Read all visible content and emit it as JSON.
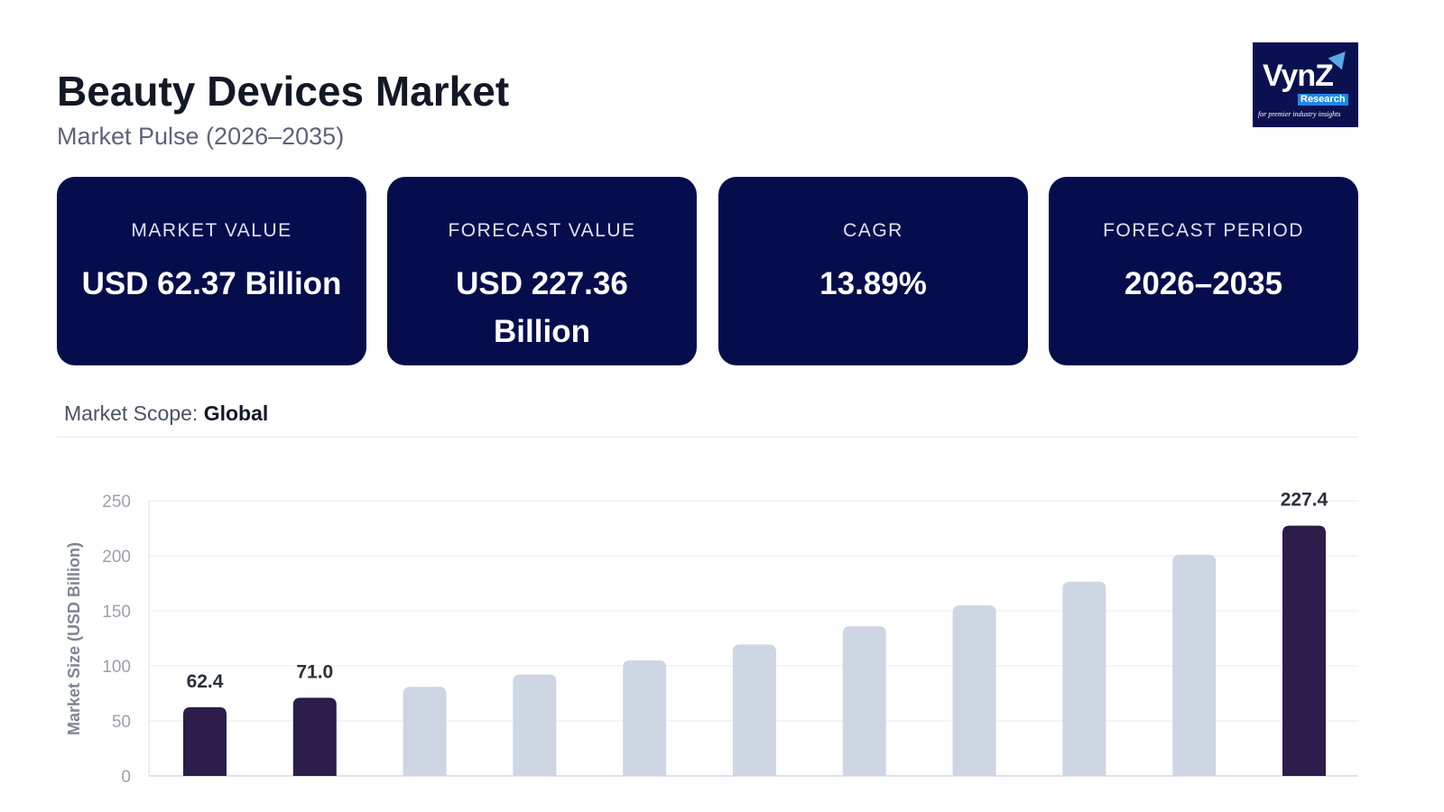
{
  "header": {
    "title": "Beauty Devices Market",
    "subtitle": "Market Pulse (2026–2035)"
  },
  "logo": {
    "text": "VynZ",
    "sub": "Research",
    "tagline": "for premier industry insights"
  },
  "cards": [
    {
      "label": "MARKET VALUE",
      "value": "USD 62.37 Billion"
    },
    {
      "label": "FORECAST VALUE",
      "value": "USD 227.36 Billion"
    },
    {
      "label": "CAGR",
      "value": "13.89%"
    },
    {
      "label": "FORECAST PERIOD",
      "value": "2026–2035"
    }
  ],
  "scope": {
    "label": "Market Scope:",
    "value": "Global"
  },
  "colors": {
    "card_bg": "#050d4d",
    "bar_highlight": "#2c1d4a",
    "bar_forecast": "#cdd6e2"
  },
  "chart_data": {
    "type": "bar",
    "ylabel": "Market Size (USD Billion)",
    "ylim": [
      0,
      250
    ],
    "yticks": [
      0,
      50,
      100,
      150,
      200,
      250
    ],
    "grid": true,
    "values": [
      62.4,
      71.0,
      80.9,
      92.1,
      104.9,
      119.4,
      136.0,
      154.9,
      176.4,
      200.9,
      227.4
    ],
    "highlighted": [
      true,
      true,
      false,
      false,
      false,
      false,
      false,
      false,
      false,
      false,
      true
    ],
    "data_labels": [
      "62.4",
      "71.0",
      "",
      "",
      "",
      "",
      "",
      "",
      "",
      "",
      "227.4"
    ]
  }
}
